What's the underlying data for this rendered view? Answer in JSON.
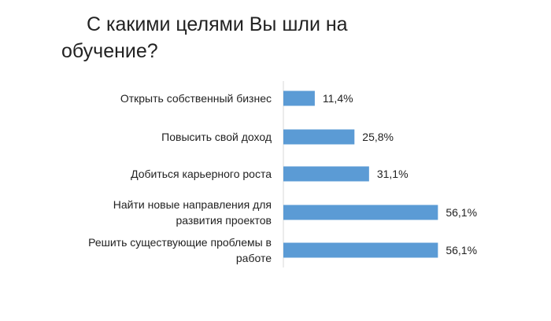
{
  "chart_data": {
    "type": "bar",
    "orientation": "horizontal",
    "title": "С какими целями Вы шли на обучение?",
    "categories": [
      [
        "Открыть собственный бизнес"
      ],
      [
        "Повысить свой доход"
      ],
      [
        "Добиться карьерного роста"
      ],
      [
        "Найти новые направления для",
        "развития проектов"
      ],
      [
        "Решить существующие проблемы в",
        "работе"
      ]
    ],
    "values": [
      11.4,
      25.8,
      31.1,
      56.1,
      56.1
    ],
    "data_labels": [
      "11,4%",
      "25,8%",
      "31,1%",
      "56,1%",
      "56,1%"
    ],
    "bar_color": "#5B9BD5",
    "grid": false,
    "legend": "none"
  }
}
